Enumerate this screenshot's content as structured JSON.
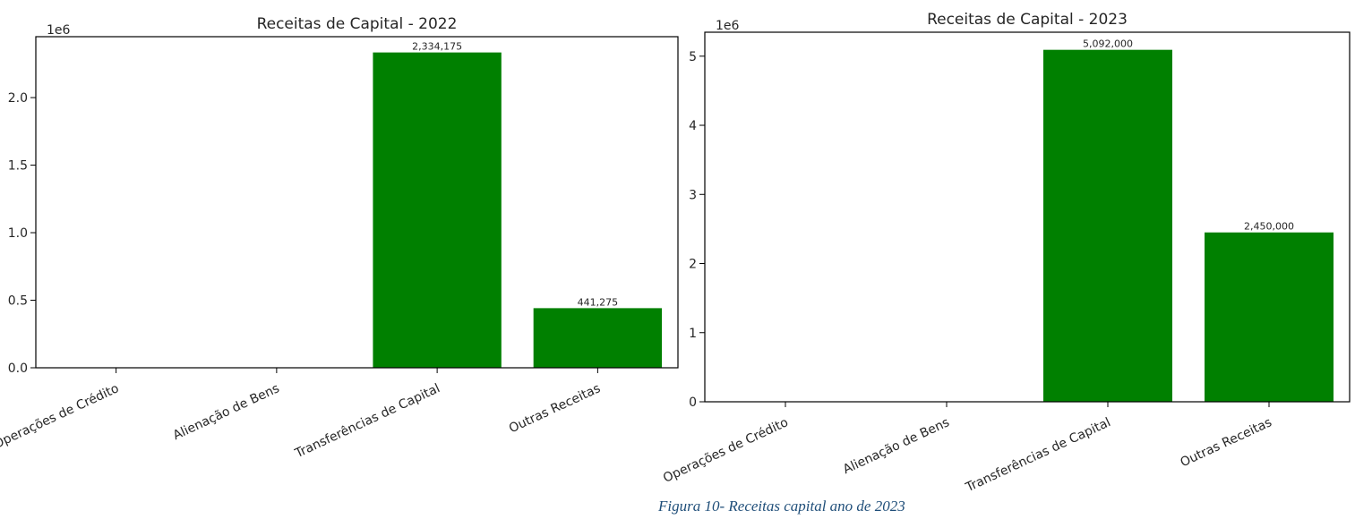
{
  "colors": {
    "bar": "#008000",
    "axis": "#000000",
    "text": "#262626",
    "caption": "#1f4e79"
  },
  "caption": "Figura 10- Receitas capital ano de 2023",
  "chart_data": [
    {
      "type": "bar",
      "title": "Receitas de Capital - 2022",
      "xlabel": "",
      "ylabel": "",
      "offset_text": "1e6",
      "categories": [
        "Operações de Crédito",
        "Alienação de Bens",
        "Transferências de Capital",
        "Outras Receitas"
      ],
      "values": [
        0,
        0,
        2334175,
        441275
      ],
      "value_labels": [
        "",
        "",
        "2,334,175",
        "441,275"
      ],
      "yticks": [
        0,
        500000,
        1000000,
        1500000,
        2000000
      ],
      "ytick_labels": [
        "0.0",
        "0.5",
        "1.0",
        "1.5",
        "2.0"
      ],
      "ylim": [
        0,
        2450884
      ],
      "grid": false,
      "legend": "none"
    },
    {
      "type": "bar",
      "title": "Receitas de Capital - 2023",
      "xlabel": "",
      "ylabel": "",
      "offset_text": "1e6",
      "categories": [
        "Operações de Crédito",
        "Alienação de Bens",
        "Transferências de Capital",
        "Outras Receitas"
      ],
      "values": [
        0,
        0,
        5092000,
        2450000
      ],
      "value_labels": [
        "",
        "",
        "5,092,000",
        "2,450,000"
      ],
      "yticks": [
        0,
        1000000,
        2000000,
        3000000,
        4000000,
        5000000
      ],
      "ytick_labels": [
        "0",
        "1",
        "2",
        "3",
        "4",
        "5"
      ],
      "ylim": [
        0,
        5346600
      ],
      "grid": false,
      "legend": "none"
    }
  ]
}
